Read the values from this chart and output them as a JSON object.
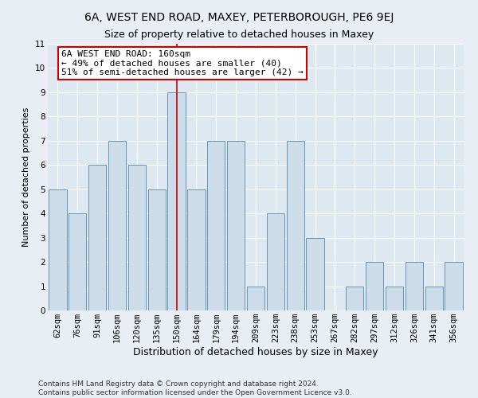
{
  "title": "6A, WEST END ROAD, MAXEY, PETERBOROUGH, PE6 9EJ",
  "subtitle": "Size of property relative to detached houses in Maxey",
  "xlabel": "Distribution of detached houses by size in Maxey",
  "ylabel": "Number of detached properties",
  "categories": [
    "62sqm",
    "76sqm",
    "91sqm",
    "106sqm",
    "120sqm",
    "135sqm",
    "150sqm",
    "164sqm",
    "179sqm",
    "194sqm",
    "209sqm",
    "223sqm",
    "238sqm",
    "253sqm",
    "267sqm",
    "282sqm",
    "297sqm",
    "312sqm",
    "326sqm",
    "341sqm",
    "356sqm"
  ],
  "values": [
    5,
    4,
    6,
    7,
    6,
    5,
    9,
    5,
    7,
    7,
    1,
    4,
    7,
    3,
    0,
    1,
    2,
    1,
    2,
    1,
    2
  ],
  "bar_color": "#ccdce8",
  "bar_edgecolor": "#5588aa",
  "highlight_index": 6,
  "highlight_line_color": "#cc0000",
  "annotation_text": "6A WEST END ROAD: 160sqm\n← 49% of detached houses are smaller (40)\n51% of semi-detached houses are larger (42) →",
  "annotation_box_edgecolor": "#cc0000",
  "annotation_box_facecolor": "white",
  "ylim": [
    0,
    11
  ],
  "yticks": [
    0,
    1,
    2,
    3,
    4,
    5,
    6,
    7,
    8,
    9,
    10,
    11
  ],
  "background_color": "#e8eef4",
  "plot_background_color": "#dde8f0",
  "grid_color": "white",
  "footer": "Contains HM Land Registry data © Crown copyright and database right 2024.\nContains public sector information licensed under the Open Government Licence v3.0.",
  "title_fontsize": 10,
  "subtitle_fontsize": 9,
  "xlabel_fontsize": 9,
  "ylabel_fontsize": 8,
  "tick_fontsize": 7.5,
  "annotation_fontsize": 8,
  "footer_fontsize": 6.5
}
